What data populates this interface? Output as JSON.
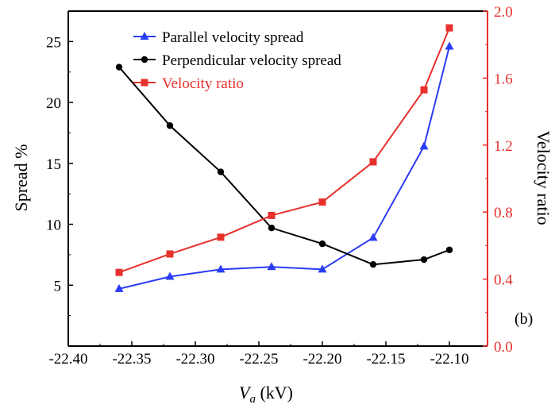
{
  "chart_data": {
    "type": "line",
    "panel_label": "(b)",
    "xlabel_main": "V",
    "xlabel_sub": "a",
    "xlabel_unit": " (kV)",
    "ylabel_left": "Spread %",
    "ylabel_right": "Velocity ratio",
    "xlim": [
      -22.4,
      -22.07
    ],
    "x_ticks": [
      -22.4,
      -22.35,
      -22.3,
      -22.25,
      -22.2,
      -22.15,
      -22.1
    ],
    "x_tick_labels": [
      "-22.40",
      "-22.35",
      "-22.30",
      "-22.25",
      "-22.20",
      "-22.15",
      "-22.10"
    ],
    "ylim_left": [
      0,
      27.5
    ],
    "y_left_ticks": [
      5,
      10,
      15,
      20,
      25
    ],
    "y_left_tick_labels": [
      "5",
      "10",
      "15",
      "20",
      "25"
    ],
    "ylim_right": [
      0.0,
      2.0
    ],
    "y_right_ticks": [
      0.0,
      0.4,
      0.8,
      1.2,
      1.6,
      2.0
    ],
    "y_right_tick_labels": [
      "0.0",
      "0.4",
      "0.8",
      "1.2",
      "1.6",
      "2.0"
    ],
    "grid": false,
    "legend_position": "top-center",
    "x": [
      -22.36,
      -22.32,
      -22.28,
      -22.24,
      -22.2,
      -22.16,
      -22.12,
      -22.1
    ],
    "series": [
      {
        "name": "Parallel velocity spread",
        "axis": "left",
        "color": "#2a3cf5",
        "marker": "triangle",
        "values": [
          4.7,
          5.7,
          6.3,
          6.5,
          6.3,
          8.9,
          16.4,
          24.6
        ]
      },
      {
        "name": "Perpendicular velocity spread",
        "axis": "left",
        "color": "#000000",
        "marker": "circle",
        "values": [
          22.9,
          18.1,
          14.3,
          9.7,
          8.4,
          6.7,
          7.1,
          7.9
        ]
      },
      {
        "name": "Velocity ratio",
        "axis": "right",
        "color": "#e8302c",
        "marker": "square",
        "values": [
          0.44,
          0.55,
          0.65,
          0.78,
          0.86,
          1.1,
          1.53,
          1.9
        ]
      }
    ]
  }
}
